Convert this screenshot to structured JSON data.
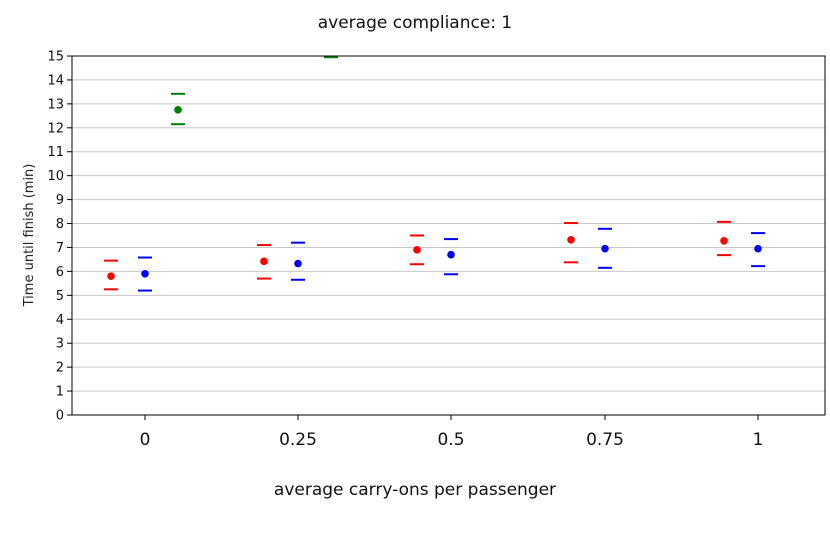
{
  "chart_data": {
    "type": "scatter",
    "title": "average compliance: 1",
    "xlabel": "average carry-ons per passenger",
    "ylabel": "Time until finish (min)",
    "categories": [
      "0",
      "0.25",
      "0.5",
      "0.75",
      "1"
    ],
    "ylim": [
      0,
      15
    ],
    "yticks": [
      0,
      1,
      2,
      3,
      4,
      5,
      6,
      7,
      8,
      9,
      10,
      11,
      12,
      13,
      14,
      15
    ],
    "grid": "horizontal",
    "series": [
      {
        "color": "#ff0000",
        "points": [
          {
            "category": "0",
            "mean": 5.8,
            "low": 5.25,
            "high": 6.45
          },
          {
            "category": "0.25",
            "mean": 6.42,
            "low": 5.7,
            "high": 7.1
          },
          {
            "category": "0.5",
            "mean": 6.9,
            "low": 6.3,
            "high": 7.5
          },
          {
            "category": "0.75",
            "mean": 7.32,
            "low": 6.38,
            "high": 8.02
          },
          {
            "category": "1",
            "mean": 7.28,
            "low": 6.68,
            "high": 8.07
          }
        ]
      },
      {
        "color": "#0000ff",
        "points": [
          {
            "category": "0",
            "mean": 5.9,
            "low": 5.2,
            "high": 6.58
          },
          {
            "category": "0.25",
            "mean": 6.33,
            "low": 5.65,
            "high": 7.2
          },
          {
            "category": "0.5",
            "mean": 6.7,
            "low": 5.88,
            "high": 7.35
          },
          {
            "category": "0.75",
            "mean": 6.95,
            "low": 6.15,
            "high": 7.78
          },
          {
            "category": "1",
            "mean": 6.95,
            "low": 6.22,
            "high": 7.6
          }
        ]
      },
      {
        "color": "#008000",
        "points": [
          {
            "category": "0",
            "mean": 12.75,
            "low": 12.15,
            "high": 13.42
          },
          {
            "category": "0.25",
            "mean": null,
            "low": 14.95,
            "high": null
          }
        ]
      }
    ]
  }
}
